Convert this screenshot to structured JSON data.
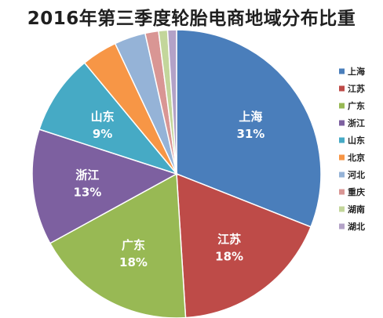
{
  "chart_data": {
    "type": "pie",
    "title": "2016年第三季度轮胎电商地域分布比重",
    "legend_position": "right",
    "categories": [
      "上海",
      "江苏",
      "广东",
      "浙江",
      "山东",
      "北京",
      "河北",
      "重庆",
      "湖南",
      "湖北"
    ],
    "values": [
      31,
      18,
      18,
      13,
      9,
      4,
      3.5,
      1.5,
      1,
      1
    ],
    "labels": [
      "31%",
      "18%",
      "18%",
      "13%",
      "9%",
      "",
      "",
      "",
      "",
      ""
    ],
    "colors": [
      "#4a7ebb",
      "#be4b48",
      "#98b954",
      "#7d60a0",
      "#46aac5",
      "#f79646",
      "#95b3d7",
      "#d99694",
      "#c3d69b",
      "#b3a2c7"
    ]
  }
}
